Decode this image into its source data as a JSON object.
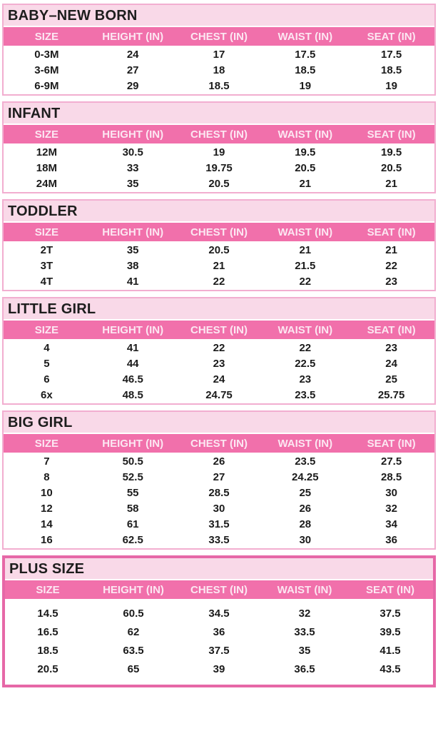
{
  "page": {
    "kind": "size-chart",
    "background": "#ffffff"
  },
  "colors": {
    "title_bar_bg": "#f9d9e8",
    "title_text": "#1d1d1d",
    "header_bg": "#f170ab",
    "header_text": "#fce7f2",
    "cell_text": "#1b1b1b",
    "section_border": "#f2aed0",
    "plus_size_border": "#e668a7"
  },
  "columns": [
    "SIZE",
    "HEIGHT (IN)",
    "CHEST (IN)",
    "WAIST (IN)",
    "SEAT (IN)"
  ],
  "tables": [
    {
      "title": "BABY–NEW BORN",
      "emphasized": false,
      "rows": [
        [
          "0-3M",
          "24",
          "17",
          "17.5",
          "17.5"
        ],
        [
          "3-6M",
          "27",
          "18",
          "18.5",
          "18.5"
        ],
        [
          "6-9M",
          "29",
          "18.5",
          "19",
          "19"
        ]
      ]
    },
    {
      "title": "INFANT",
      "emphasized": false,
      "rows": [
        [
          "12M",
          "30.5",
          "19",
          "19.5",
          "19.5"
        ],
        [
          "18M",
          "33",
          "19.75",
          "20.5",
          "20.5"
        ],
        [
          "24M",
          "35",
          "20.5",
          "21",
          "21"
        ]
      ]
    },
    {
      "title": "TODDLER",
      "emphasized": false,
      "rows": [
        [
          "2T",
          "35",
          "20.5",
          "21",
          "21"
        ],
        [
          "3T",
          "38",
          "21",
          "21.5",
          "22"
        ],
        [
          "4T",
          "41",
          "22",
          "22",
          "23"
        ]
      ]
    },
    {
      "title": "LITTLE GIRL",
      "emphasized": false,
      "rows": [
        [
          "4",
          "41",
          "22",
          "22",
          "23"
        ],
        [
          "5",
          "44",
          "23",
          "22.5",
          "24"
        ],
        [
          "6",
          "46.5",
          "24",
          "23",
          "25"
        ],
        [
          "6x",
          "48.5",
          "24.75",
          "23.5",
          "25.75"
        ]
      ]
    },
    {
      "title": "BIG GIRL",
      "emphasized": false,
      "rows": [
        [
          "7",
          "50.5",
          "26",
          "23.5",
          "27.5"
        ],
        [
          "8",
          "52.5",
          "27",
          "24.25",
          "28.5"
        ],
        [
          "10",
          "55",
          "28.5",
          "25",
          "30"
        ],
        [
          "12",
          "58",
          "30",
          "26",
          "32"
        ],
        [
          "14",
          "61",
          "31.5",
          "28",
          "34"
        ],
        [
          "16",
          "62.5",
          "33.5",
          "30",
          "36"
        ]
      ]
    },
    {
      "title": "PLUS SIZE",
      "emphasized": true,
      "rows": [
        [
          "14.5",
          "60.5",
          "34.5",
          "32",
          "37.5"
        ],
        [
          "16.5",
          "62",
          "36",
          "33.5",
          "39.5"
        ],
        [
          "18.5",
          "63.5",
          "37.5",
          "35",
          "41.5"
        ],
        [
          "20.5",
          "65",
          "39",
          "36.5",
          "43.5"
        ]
      ]
    }
  ]
}
